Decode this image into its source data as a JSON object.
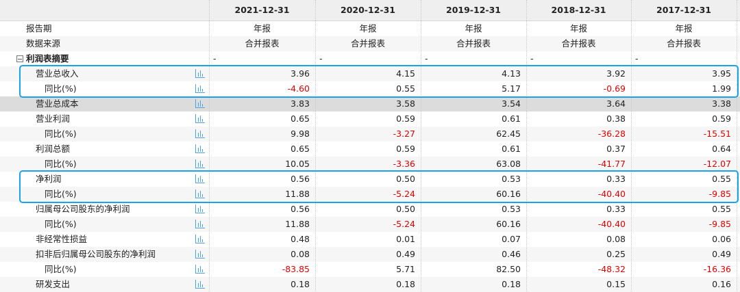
{
  "header": {
    "columns": [
      "2021-12-31",
      "2020-12-31",
      "2019-12-31",
      "2018-12-31",
      "2017-12-31"
    ]
  },
  "table": {
    "rows": [
      {
        "label": "报告期",
        "cells": [
          "年报",
          "年报",
          "年报",
          "年报",
          "年报"
        ]
      },
      {
        "label": "数据来源",
        "cells": [
          "合并报表",
          "合并报表",
          "合并报表",
          "合并报表",
          "合并报表"
        ]
      },
      {
        "label": "利润表摘要",
        "cells": [
          "-",
          "-",
          "-",
          "-",
          "-"
        ]
      },
      {
        "label": "营业总收入",
        "cells": [
          "3.96",
          "4.15",
          "4.13",
          "3.92",
          "3.95"
        ]
      },
      {
        "label": "同比(%)",
        "cells": [
          "-4.60",
          "0.55",
          "5.17",
          "-0.69",
          "1.99"
        ]
      },
      {
        "label": "营业总成本",
        "cells": [
          "3.83",
          "3.58",
          "3.54",
          "3.64",
          "3.38"
        ]
      },
      {
        "label": "营业利润",
        "cells": [
          "0.65",
          "0.59",
          "0.61",
          "0.38",
          "0.59"
        ]
      },
      {
        "label": "同比(%)",
        "cells": [
          "9.98",
          "-3.27",
          "62.45",
          "-36.28",
          "-15.51"
        ]
      },
      {
        "label": "利润总额",
        "cells": [
          "0.65",
          "0.59",
          "0.61",
          "0.37",
          "0.64"
        ]
      },
      {
        "label": "同比(%)",
        "cells": [
          "10.05",
          "-3.36",
          "63.08",
          "-41.77",
          "-12.07"
        ]
      },
      {
        "label": "净利润",
        "cells": [
          "0.56",
          "0.50",
          "0.53",
          "0.33",
          "0.55"
        ]
      },
      {
        "label": "同比(%)",
        "cells": [
          "11.88",
          "-5.24",
          "60.16",
          "-40.40",
          "-9.85"
        ]
      },
      {
        "label": "归属母公司股东的净利润",
        "cells": [
          "0.56",
          "0.50",
          "0.53",
          "0.33",
          "0.55"
        ]
      },
      {
        "label": "同比(%)",
        "cells": [
          "11.88",
          "-5.24",
          "60.16",
          "-40.40",
          "-9.85"
        ]
      },
      {
        "label": "非经常性损益",
        "cells": [
          "0.48",
          "0.01",
          "0.07",
          "0.08",
          "0.06"
        ]
      },
      {
        "label": "扣非后归属母公司股东的净利润",
        "cells": [
          "0.08",
          "0.49",
          "0.46",
          "0.25",
          "0.49"
        ]
      },
      {
        "label": "同比(%)",
        "cells": [
          "-83.85",
          "5.71",
          "82.50",
          "-48.32",
          "-16.36"
        ]
      },
      {
        "label": "研发支出",
        "cells": [
          "0.18",
          "0.18",
          "0.18",
          "0.15",
          "0.16"
        ]
      }
    ]
  }
}
